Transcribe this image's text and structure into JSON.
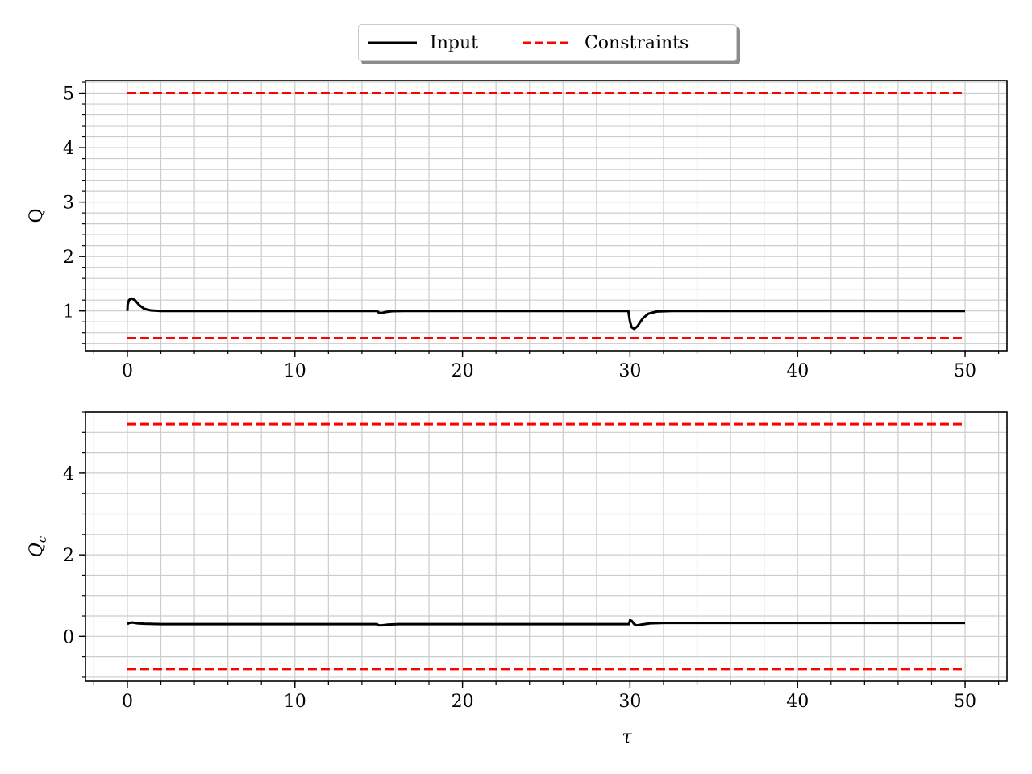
{
  "legend": {
    "input_label": "Input",
    "constraints_label": "Constraints",
    "input_color": "#000000",
    "constraints_color": "#ff0000"
  },
  "chart_data": [
    {
      "type": "line",
      "title": "",
      "xlabel": "",
      "ylabel": "Q",
      "xlim": [
        -2.5,
        52.5
      ],
      "ylim": [
        0.27,
        5.23
      ],
      "xticks": [
        0,
        10,
        20,
        30,
        40,
        50
      ],
      "yticks": [
        1,
        2,
        3,
        4,
        5
      ],
      "y_minor_step": 0.2,
      "grid": true,
      "series": [
        {
          "name": "Input",
          "style": "solid",
          "color": "#000000",
          "points": [
            [
              0,
              1.0
            ],
            [
              0.02,
              1.12
            ],
            [
              0.1,
              1.2
            ],
            [
              0.25,
              1.23
            ],
            [
              0.45,
              1.2
            ],
            [
              0.7,
              1.11
            ],
            [
              1.0,
              1.04
            ],
            [
              1.4,
              1.01
            ],
            [
              2,
              1.0
            ],
            [
              5,
              1.0
            ],
            [
              10,
              1.0
            ],
            [
              14.9,
              1.0
            ],
            [
              15.0,
              0.97
            ],
            [
              15.15,
              0.96
            ],
            [
              15.4,
              0.98
            ],
            [
              15.8,
              0.995
            ],
            [
              16.5,
              1.0
            ],
            [
              20,
              1.0
            ],
            [
              25,
              1.0
            ],
            [
              29.9,
              1.0
            ],
            [
              30.0,
              0.8
            ],
            [
              30.1,
              0.7
            ],
            [
              30.25,
              0.67
            ],
            [
              30.45,
              0.72
            ],
            [
              30.75,
              0.86
            ],
            [
              31.1,
              0.95
            ],
            [
              31.6,
              0.99
            ],
            [
              32.5,
              1.0
            ],
            [
              40,
              1.0
            ],
            [
              50,
              1.0
            ]
          ]
        },
        {
          "name": "Constraints",
          "style": "dashed",
          "color": "#ff0000",
          "segments": [
            [
              [
                0,
                5.0
              ],
              [
                50,
                5.0
              ]
            ],
            [
              [
                0,
                0.5
              ],
              [
                50,
                0.5
              ]
            ]
          ]
        }
      ]
    },
    {
      "type": "line",
      "title": "",
      "xlabel": "τ",
      "ylabel": "Qc",
      "xlim": [
        -2.5,
        52.5
      ],
      "ylim": [
        -1.1,
        5.5
      ],
      "xticks": [
        0,
        10,
        20,
        30,
        40,
        50
      ],
      "yticks": [
        0,
        2,
        4
      ],
      "y_minor_step": 0.5,
      "grid": true,
      "series": [
        {
          "name": "Input",
          "style": "solid",
          "color": "#000000",
          "points": [
            [
              0,
              0.3
            ],
            [
              0.1,
              0.33
            ],
            [
              0.3,
              0.34
            ],
            [
              0.6,
              0.32
            ],
            [
              1.0,
              0.31
            ],
            [
              2,
              0.3
            ],
            [
              10,
              0.3
            ],
            [
              14.9,
              0.3
            ],
            [
              15.0,
              0.27
            ],
            [
              15.2,
              0.27
            ],
            [
              15.6,
              0.29
            ],
            [
              16.2,
              0.3
            ],
            [
              25,
              0.3
            ],
            [
              29.95,
              0.3
            ],
            [
              30.0,
              0.4
            ],
            [
              30.1,
              0.38
            ],
            [
              30.25,
              0.3
            ],
            [
              30.4,
              0.27
            ],
            [
              30.7,
              0.29
            ],
            [
              31.2,
              0.32
            ],
            [
              32,
              0.33
            ],
            [
              40,
              0.33
            ],
            [
              50,
              0.33
            ]
          ]
        },
        {
          "name": "Constraints",
          "style": "dashed",
          "color": "#ff0000",
          "segments": [
            [
              [
                0,
                5.2
              ],
              [
                50,
                5.2
              ]
            ],
            [
              [
                0,
                -0.8
              ],
              [
                50,
                -0.8
              ]
            ]
          ]
        }
      ]
    }
  ]
}
